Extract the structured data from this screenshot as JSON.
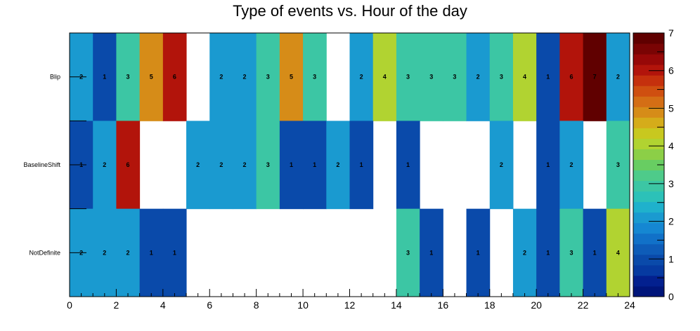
{
  "chart_data": {
    "type": "heatmap",
    "title": "Type of events vs. Hour of the day",
    "xlabel": "",
    "ylabel": "",
    "xlim": [
      0,
      24
    ],
    "x_ticks": [
      "0",
      "2",
      "4",
      "6",
      "8",
      "10",
      "12",
      "14",
      "16",
      "18",
      "20",
      "22",
      "24"
    ],
    "rows": [
      "Blip",
      "BaselineShift",
      "NotDefinite"
    ],
    "values": [
      [
        2,
        1,
        3,
        5,
        6,
        0,
        2,
        2,
        3,
        5,
        3,
        0,
        2,
        4,
        3,
        3,
        3,
        2,
        3,
        4,
        1,
        6,
        7,
        2
      ],
      [
        1,
        2,
        6,
        0,
        0,
        2,
        2,
        2,
        3,
        1,
        1,
        2,
        1,
        0,
        1,
        0,
        0,
        0,
        2,
        0,
        1,
        2,
        0,
        3
      ],
      [
        2,
        2,
        2,
        1,
        1,
        0,
        0,
        0,
        0,
        0,
        0,
        0,
        0,
        0,
        3,
        1,
        0,
        1,
        0,
        2,
        1,
        3,
        1,
        4
      ]
    ],
    "zlim": [
      0,
      7
    ],
    "colorbar_ticks": [
      "0",
      "1",
      "2",
      "3",
      "4",
      "5",
      "6",
      "7"
    ],
    "grid": false
  }
}
